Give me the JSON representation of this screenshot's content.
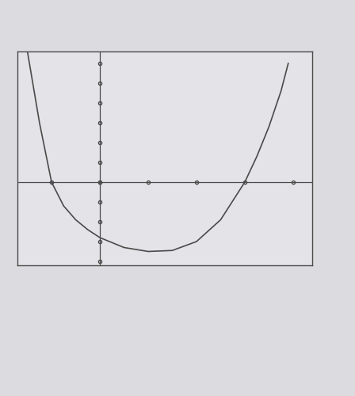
{
  "chart_data": {
    "type": "line",
    "x": [
      -1.5,
      -1.25,
      -1,
      -0.75,
      -0.5,
      -0.25,
      0,
      0.5,
      1,
      1.5,
      2,
      2.5,
      3,
      3.25,
      3.5,
      3.75,
      3.9
    ],
    "values": [
      6.6,
      3.0,
      0,
      -1.2,
      -1.9,
      -2.4,
      -2.8,
      -3.3,
      -3.5,
      -3.45,
      -3.0,
      -1.9,
      0,
      1.3,
      2.8,
      4.6,
      6.0
    ],
    "color": "#4a4a4a",
    "xlim": [
      -1.7,
      4.4
    ],
    "ylim": [
      -4.2,
      6.6
    ],
    "xticks": [
      -1,
      0,
      1,
      2,
      3,
      4
    ],
    "yticks": [
      -4,
      -3,
      -2,
      -1,
      0,
      1,
      2,
      3,
      4,
      5,
      6
    ],
    "grid": false,
    "tick_labels": false
  }
}
